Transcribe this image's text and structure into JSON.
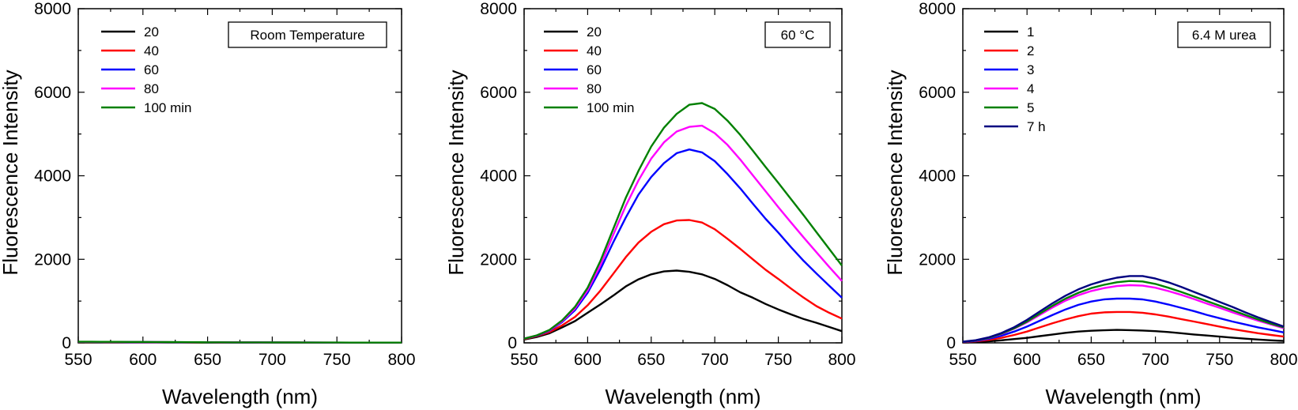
{
  "chart_data": [
    {
      "type": "line",
      "xlabel": "Wavelength (nm)",
      "ylabel": "Fluorescence Intensity",
      "xlim": [
        550,
        800
      ],
      "ylim": [
        0,
        8000
      ],
      "xticks": [
        "550",
        "600",
        "650",
        "700",
        "750",
        "800"
      ],
      "yticks": [
        "0",
        "2000",
        "4000",
        "6000",
        "8000"
      ],
      "annotation": "Room Temperature",
      "legend_position": "top-left",
      "x": [
        550,
        560,
        570,
        580,
        590,
        600,
        610,
        620,
        630,
        640,
        650,
        660,
        670,
        680,
        690,
        700,
        710,
        720,
        730,
        740,
        750,
        760,
        770,
        780,
        790,
        800
      ],
      "series": [
        {
          "name": "20",
          "color": "#000000",
          "values": [
            18,
            18,
            17,
            16,
            15,
            14,
            13,
            12,
            11,
            10,
            9,
            8,
            8,
            7,
            7,
            6,
            6,
            5,
            5,
            5,
            4,
            4,
            4,
            3,
            3,
            3
          ]
        },
        {
          "name": "40",
          "color": "#ff0000",
          "values": [
            20,
            20,
            19,
            18,
            17,
            16,
            15,
            14,
            13,
            12,
            11,
            10,
            9,
            9,
            8,
            8,
            7,
            7,
            6,
            6,
            5,
            5,
            5,
            4,
            4,
            4
          ]
        },
        {
          "name": "60",
          "color": "#0000ff",
          "values": [
            22,
            22,
            21,
            20,
            19,
            18,
            17,
            15,
            14,
            13,
            12,
            11,
            10,
            10,
            9,
            9,
            8,
            7,
            7,
            6,
            6,
            5,
            5,
            5,
            4,
            4
          ]
        },
        {
          "name": "80",
          "color": "#ff00ff",
          "values": [
            24,
            24,
            23,
            22,
            21,
            20,
            18,
            17,
            16,
            14,
            13,
            12,
            11,
            11,
            10,
            9,
            9,
            8,
            7,
            7,
            6,
            6,
            5,
            5,
            5,
            4
          ]
        },
        {
          "name": "100 min",
          "color": "#008000",
          "values": [
            26,
            26,
            25,
            24,
            23,
            22,
            20,
            19,
            17,
            16,
            14,
            13,
            12,
            12,
            11,
            10,
            9,
            9,
            8,
            7,
            7,
            6,
            6,
            5,
            5,
            5
          ]
        }
      ]
    },
    {
      "type": "line",
      "xlabel": "Wavelength (nm)",
      "ylabel": "Fluorescence Intensity",
      "xlim": [
        550,
        800
      ],
      "ylim": [
        0,
        8000
      ],
      "xticks": [
        "550",
        "600",
        "650",
        "700",
        "750",
        "800"
      ],
      "yticks": [
        "0",
        "2000",
        "4000",
        "6000",
        "8000"
      ],
      "annotation": "60 °C",
      "legend_position": "top-left",
      "x": [
        550,
        560,
        570,
        580,
        590,
        600,
        610,
        620,
        630,
        640,
        650,
        660,
        670,
        680,
        690,
        700,
        710,
        720,
        730,
        740,
        750,
        760,
        770,
        780,
        790,
        800
      ],
      "series": [
        {
          "name": "20",
          "color": "#000000",
          "values": [
            80,
            140,
            230,
            370,
            520,
            720,
            920,
            1130,
            1350,
            1520,
            1640,
            1710,
            1730,
            1700,
            1640,
            1530,
            1380,
            1210,
            1080,
            930,
            800,
            680,
            570,
            480,
            380,
            280
          ]
        },
        {
          "name": "40",
          "color": "#ff0000",
          "values": [
            90,
            160,
            260,
            420,
            620,
            900,
            1250,
            1650,
            2050,
            2400,
            2660,
            2840,
            2930,
            2940,
            2880,
            2720,
            2490,
            2250,
            2000,
            1750,
            1530,
            1300,
            1080,
            880,
            720,
            580
          ]
        },
        {
          "name": "60",
          "color": "#0000ff",
          "values": [
            100,
            170,
            290,
            500,
            780,
            1200,
            1760,
            2400,
            3000,
            3550,
            3970,
            4300,
            4540,
            4630,
            4560,
            4350,
            4040,
            3700,
            3330,
            2970,
            2640,
            2290,
            1960,
            1660,
            1370,
            1080
          ]
        },
        {
          "name": "80",
          "color": "#ff00ff",
          "values": [
            100,
            175,
            300,
            520,
            820,
            1260,
            1860,
            2580,
            3280,
            3890,
            4410,
            4800,
            5060,
            5170,
            5200,
            5020,
            4740,
            4390,
            4010,
            3630,
            3250,
            2880,
            2520,
            2170,
            1820,
            1480
          ]
        },
        {
          "name": "100 min",
          "color": "#008000",
          "values": [
            100,
            180,
            310,
            540,
            860,
            1320,
            1960,
            2720,
            3470,
            4120,
            4700,
            5150,
            5480,
            5700,
            5740,
            5600,
            5320,
            4980,
            4600,
            4210,
            3830,
            3440,
            3050,
            2650,
            2250,
            1850
          ]
        }
      ]
    },
    {
      "type": "line",
      "xlabel": "Wavelength (nm)",
      "ylabel": "Fluorescence Intensity",
      "xlim": [
        550,
        800
      ],
      "ylim": [
        0,
        8000
      ],
      "xticks": [
        "550",
        "600",
        "650",
        "700",
        "750",
        "800"
      ],
      "yticks": [
        "0",
        "2000",
        "4000",
        "6000",
        "8000"
      ],
      "annotation": "6.4 M urea",
      "legend_position": "top-left",
      "x": [
        550,
        560,
        570,
        580,
        590,
        600,
        610,
        620,
        630,
        640,
        650,
        660,
        670,
        680,
        690,
        700,
        710,
        720,
        730,
        740,
        750,
        760,
        770,
        780,
        790,
        800
      ],
      "series": [
        {
          "name": "1",
          "color": "#000000",
          "values": [
            10,
            20,
            35,
            60,
            90,
            120,
            160,
            200,
            240,
            270,
            290,
            300,
            310,
            305,
            295,
            280,
            260,
            230,
            200,
            175,
            150,
            125,
            100,
            80,
            60,
            45
          ]
        },
        {
          "name": "2",
          "color": "#ff0000",
          "values": [
            15,
            35,
            70,
            120,
            190,
            270,
            370,
            470,
            560,
            640,
            700,
            730,
            740,
            740,
            720,
            680,
            630,
            570,
            510,
            450,
            390,
            330,
            280,
            230,
            190,
            150
          ]
        },
        {
          "name": "3",
          "color": "#0000ff",
          "values": [
            20,
            45,
            95,
            170,
            270,
            390,
            530,
            670,
            800,
            910,
            990,
            1040,
            1060,
            1060,
            1040,
            990,
            920,
            840,
            760,
            670,
            590,
            510,
            440,
            370,
            310,
            250
          ]
        },
        {
          "name": "4",
          "color": "#ff00ff",
          "values": [
            25,
            55,
            115,
            210,
            340,
            490,
            670,
            850,
            1010,
            1140,
            1240,
            1310,
            1360,
            1380,
            1370,
            1320,
            1240,
            1150,
            1050,
            940,
            840,
            730,
            630,
            530,
            440,
            350
          ]
        },
        {
          "name": "5",
          "color": "#008000",
          "values": [
            25,
            58,
            120,
            220,
            350,
            510,
            700,
            890,
            1060,
            1200,
            1310,
            1390,
            1450,
            1480,
            1470,
            1410,
            1320,
            1220,
            1110,
            1000,
            890,
            780,
            670,
            560,
            460,
            370
          ]
        },
        {
          "name": "7 h",
          "color": "#000080",
          "values": [
            28,
            62,
            130,
            235,
            375,
            550,
            750,
            950,
            1130,
            1280,
            1400,
            1490,
            1560,
            1600,
            1600,
            1540,
            1450,
            1340,
            1220,
            1100,
            980,
            860,
            730,
            610,
            500,
            390
          ]
        }
      ]
    }
  ]
}
